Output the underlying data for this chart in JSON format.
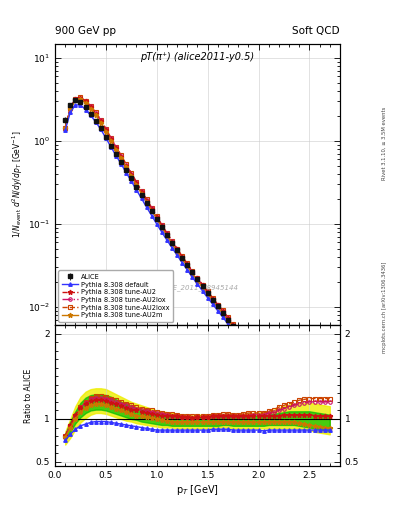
{
  "title_left": "900 GeV pp",
  "title_right": "Soft QCD",
  "plot_title": "pT(π⁺) (alice2011-y0.5)",
  "watermark": "ALICE_2011_S8945144",
  "right_label_top": "Rivet 3.1.10, ≥ 3.5M events",
  "right_label_bot": "mcplots.cern.ch [arXiv:1306.3436]",
  "xlabel": "p$_{T}$ [GeV]",
  "ylabel_main": "1/N$_{\\rm event}$ d$^{2}$N/dy/dp$_{T}$ [GeV$^{-1}$]",
  "ylabel_ratio": "Ratio to ALICE",
  "xlim": [
    0.0,
    2.8
  ],
  "ylim_main": [
    0.006,
    15.0
  ],
  "ylim_ratio": [
    0.45,
    2.1
  ],
  "pt_values": [
    0.1,
    0.15,
    0.2,
    0.25,
    0.3,
    0.35,
    0.4,
    0.45,
    0.5,
    0.55,
    0.6,
    0.65,
    0.7,
    0.75,
    0.8,
    0.85,
    0.9,
    0.95,
    1.0,
    1.05,
    1.1,
    1.15,
    1.2,
    1.25,
    1.3,
    1.35,
    1.4,
    1.45,
    1.5,
    1.55,
    1.6,
    1.65,
    1.7,
    1.75,
    1.8,
    1.85,
    1.9,
    1.95,
    2.0,
    2.05,
    2.1,
    2.15,
    2.2,
    2.25,
    2.3,
    2.35,
    2.4,
    2.45,
    2.5,
    2.55,
    2.6,
    2.65,
    2.7
  ],
  "alice_values": [
    1.8,
    2.7,
    3.1,
    2.95,
    2.55,
    2.12,
    1.75,
    1.42,
    1.12,
    0.88,
    0.7,
    0.56,
    0.445,
    0.355,
    0.282,
    0.225,
    0.178,
    0.143,
    0.114,
    0.091,
    0.073,
    0.059,
    0.048,
    0.039,
    0.032,
    0.026,
    0.0215,
    0.0178,
    0.0147,
    0.0122,
    0.0101,
    0.0085,
    0.007,
    0.0059,
    0.005,
    0.0042,
    0.0036,
    0.003,
    0.0026,
    0.0022,
    0.0019,
    0.0016,
    0.00138,
    0.00118,
    0.001,
    0.00086,
    0.00073,
    0.00063,
    0.00054,
    0.00047,
    0.0004,
    0.00035,
    0.0003
  ],
  "alice_err_rel": [
    0.09,
    0.06,
    0.05,
    0.05,
    0.05,
    0.05,
    0.05,
    0.05,
    0.05,
    0.05,
    0.05,
    0.05,
    0.05,
    0.05,
    0.05,
    0.05,
    0.05,
    0.05,
    0.05,
    0.05,
    0.05,
    0.05,
    0.05,
    0.05,
    0.05,
    0.05,
    0.05,
    0.05,
    0.05,
    0.05,
    0.05,
    0.05,
    0.05,
    0.05,
    0.05,
    0.06,
    0.06,
    0.06,
    0.06,
    0.07,
    0.07,
    0.07,
    0.07,
    0.07,
    0.07,
    0.08,
    0.08,
    0.08,
    0.09,
    0.09,
    0.09,
    0.09,
    0.1
  ],
  "default_ratio": [
    0.75,
    0.82,
    0.88,
    0.92,
    0.94,
    0.96,
    0.97,
    0.97,
    0.97,
    0.96,
    0.95,
    0.94,
    0.93,
    0.92,
    0.91,
    0.9,
    0.89,
    0.88,
    0.87,
    0.87,
    0.87,
    0.87,
    0.87,
    0.87,
    0.87,
    0.87,
    0.87,
    0.87,
    0.87,
    0.88,
    0.88,
    0.88,
    0.88,
    0.87,
    0.87,
    0.87,
    0.87,
    0.87,
    0.87,
    0.86,
    0.87,
    0.87,
    0.87,
    0.87,
    0.87,
    0.87,
    0.87,
    0.87,
    0.87,
    0.87,
    0.87,
    0.87,
    0.87
  ],
  "au2_ratio": [
    0.8,
    0.93,
    1.05,
    1.13,
    1.18,
    1.21,
    1.22,
    1.22,
    1.21,
    1.19,
    1.17,
    1.15,
    1.13,
    1.11,
    1.1,
    1.08,
    1.07,
    1.06,
    1.05,
    1.04,
    1.04,
    1.03,
    1.03,
    1.02,
    1.02,
    1.01,
    1.02,
    1.02,
    1.02,
    1.03,
    1.03,
    1.04,
    1.04,
    1.03,
    1.03,
    1.03,
    1.03,
    1.03,
    1.03,
    1.03,
    1.04,
    1.04,
    1.04,
    1.05,
    1.05,
    1.05,
    1.05,
    1.05,
    1.05,
    1.04,
    1.04,
    1.04,
    1.04
  ],
  "au2lox_ratio": [
    0.8,
    0.92,
    1.04,
    1.13,
    1.19,
    1.23,
    1.25,
    1.25,
    1.24,
    1.22,
    1.2,
    1.18,
    1.16,
    1.14,
    1.12,
    1.1,
    1.09,
    1.08,
    1.07,
    1.06,
    1.05,
    1.04,
    1.03,
    1.02,
    1.02,
    1.01,
    1.02,
    1.02,
    1.02,
    1.03,
    1.04,
    1.04,
    1.04,
    1.03,
    1.03,
    1.04,
    1.04,
    1.05,
    1.05,
    1.05,
    1.07,
    1.08,
    1.1,
    1.12,
    1.14,
    1.16,
    1.18,
    1.19,
    1.2,
    1.2,
    1.2,
    1.2,
    1.2
  ],
  "au2loxx_ratio": [
    0.8,
    0.92,
    1.04,
    1.14,
    1.2,
    1.25,
    1.27,
    1.27,
    1.26,
    1.24,
    1.22,
    1.2,
    1.18,
    1.16,
    1.14,
    1.12,
    1.11,
    1.1,
    1.08,
    1.07,
    1.06,
    1.06,
    1.05,
    1.04,
    1.04,
    1.03,
    1.04,
    1.04,
    1.04,
    1.05,
    1.05,
    1.06,
    1.06,
    1.05,
    1.05,
    1.06,
    1.07,
    1.07,
    1.07,
    1.07,
    1.09,
    1.11,
    1.14,
    1.16,
    1.18,
    1.2,
    1.22,
    1.23,
    1.24,
    1.24,
    1.24,
    1.24,
    1.24
  ],
  "au2m_ratio": [
    0.79,
    0.89,
    1.0,
    1.08,
    1.13,
    1.16,
    1.17,
    1.17,
    1.16,
    1.14,
    1.12,
    1.1,
    1.08,
    1.06,
    1.04,
    1.03,
    1.02,
    1.01,
    1.0,
    0.99,
    0.98,
    0.97,
    0.96,
    0.96,
    0.96,
    0.96,
    0.96,
    0.96,
    0.96,
    0.97,
    0.97,
    0.97,
    0.97,
    0.96,
    0.96,
    0.96,
    0.96,
    0.96,
    0.96,
    0.96,
    0.97,
    0.97,
    0.97,
    0.97,
    0.97,
    0.96,
    0.95,
    0.94,
    0.93,
    0.92,
    0.91,
    0.9,
    0.89
  ],
  "yellow_band_lo": [
    0.7,
    0.78,
    0.88,
    0.96,
    1.01,
    1.05,
    1.07,
    1.07,
    1.06,
    1.04,
    1.02,
    1.0,
    0.98,
    0.97,
    0.95,
    0.94,
    0.93,
    0.92,
    0.91,
    0.9,
    0.9,
    0.9,
    0.89,
    0.89,
    0.89,
    0.89,
    0.89,
    0.89,
    0.89,
    0.9,
    0.9,
    0.9,
    0.9,
    0.89,
    0.89,
    0.89,
    0.89,
    0.89,
    0.89,
    0.89,
    0.89,
    0.89,
    0.89,
    0.89,
    0.89,
    0.89,
    0.89,
    0.88,
    0.87,
    0.85,
    0.84,
    0.83,
    0.82
  ],
  "yellow_band_hi": [
    0.85,
    1.0,
    1.15,
    1.26,
    1.32,
    1.35,
    1.36,
    1.36,
    1.35,
    1.32,
    1.29,
    1.26,
    1.23,
    1.2,
    1.18,
    1.16,
    1.14,
    1.12,
    1.1,
    1.09,
    1.08,
    1.07,
    1.06,
    1.05,
    1.05,
    1.04,
    1.05,
    1.05,
    1.05,
    1.05,
    1.05,
    1.06,
    1.06,
    1.05,
    1.05,
    1.06,
    1.07,
    1.07,
    1.08,
    1.08,
    1.09,
    1.11,
    1.13,
    1.15,
    1.17,
    1.18,
    1.19,
    1.19,
    1.19,
    1.18,
    1.17,
    1.16,
    1.15
  ],
  "green_band_lo": [
    0.76,
    0.85,
    0.95,
    1.02,
    1.07,
    1.1,
    1.11,
    1.11,
    1.1,
    1.08,
    1.06,
    1.04,
    1.02,
    1.0,
    0.99,
    0.97,
    0.96,
    0.95,
    0.94,
    0.93,
    0.93,
    0.92,
    0.92,
    0.92,
    0.92,
    0.92,
    0.92,
    0.92,
    0.92,
    0.92,
    0.92,
    0.93,
    0.93,
    0.92,
    0.92,
    0.92,
    0.92,
    0.92,
    0.92,
    0.92,
    0.93,
    0.93,
    0.93,
    0.93,
    0.93,
    0.93,
    0.92,
    0.91,
    0.9,
    0.89,
    0.88,
    0.87,
    0.86
  ],
  "green_band_hi": [
    0.82,
    0.97,
    1.09,
    1.19,
    1.25,
    1.28,
    1.29,
    1.29,
    1.28,
    1.26,
    1.23,
    1.2,
    1.17,
    1.15,
    1.13,
    1.11,
    1.1,
    1.08,
    1.07,
    1.06,
    1.05,
    1.04,
    1.03,
    1.03,
    1.02,
    1.02,
    1.02,
    1.02,
    1.02,
    1.03,
    1.03,
    1.03,
    1.03,
    1.03,
    1.03,
    1.03,
    1.04,
    1.04,
    1.04,
    1.04,
    1.05,
    1.06,
    1.07,
    1.08,
    1.09,
    1.09,
    1.09,
    1.09,
    1.09,
    1.08,
    1.07,
    1.06,
    1.05
  ],
  "color_alice": "#111111",
  "color_default": "#3333ff",
  "color_au2": "#cc1111",
  "color_au2lox": "#cc1166",
  "color_au2loxx": "#cc4400",
  "color_au2m": "#cc7700",
  "color_yellow": "#eeee00",
  "color_green": "#00bb00",
  "legend_labels": [
    "ALICE",
    "Pythia 8.308 default",
    "Pythia 8.308 tune-AU2",
    "Pythia 8.308 tune-AU2lox",
    "Pythia 8.308 tune-AU2loxx",
    "Pythia 8.308 tune-AU2m"
  ]
}
